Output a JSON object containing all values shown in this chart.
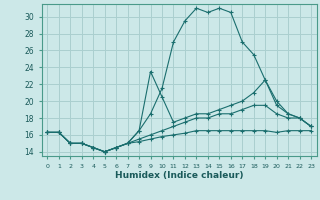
{
  "xlabel": "Humidex (Indice chaleur)",
  "background_color": "#cce8e8",
  "grid_color": "#aacfcf",
  "line_color": "#1a6e6e",
  "xlim": [
    -0.5,
    23.5
  ],
  "ylim": [
    13.5,
    31.5
  ],
  "xticks": [
    0,
    1,
    2,
    3,
    4,
    5,
    6,
    7,
    8,
    9,
    10,
    11,
    12,
    13,
    14,
    15,
    16,
    17,
    18,
    19,
    20,
    21,
    22,
    23
  ],
  "yticks": [
    14,
    16,
    18,
    20,
    22,
    24,
    26,
    28,
    30
  ],
  "series": [
    {
      "x": [
        0,
        1,
        2,
        3,
        4,
        5,
        6,
        7,
        8,
        9,
        10,
        11,
        12,
        13,
        14,
        15,
        16,
        17,
        18,
        19,
        20,
        21,
        22,
        23
      ],
      "y": [
        16.3,
        16.3,
        15.0,
        15.0,
        14.5,
        14.0,
        14.5,
        15.0,
        16.5,
        18.5,
        21.5,
        27.0,
        29.5,
        31.0,
        30.5,
        31.0,
        30.5,
        27.0,
        25.5,
        22.5,
        20.0,
        18.5,
        18.0,
        17.0
      ]
    },
    {
      "x": [
        0,
        1,
        2,
        3,
        4,
        5,
        6,
        7,
        8,
        9,
        10,
        11,
        12,
        13,
        14,
        15,
        16,
        17,
        18,
        19,
        20,
        21,
        22,
        23
      ],
      "y": [
        16.3,
        16.3,
        15.0,
        15.0,
        14.5,
        14.0,
        14.5,
        15.0,
        16.5,
        23.5,
        20.5,
        17.5,
        18.0,
        18.5,
        18.5,
        19.0,
        19.5,
        20.0,
        21.0,
        22.5,
        19.5,
        18.5,
        18.0,
        17.0
      ]
    },
    {
      "x": [
        0,
        1,
        2,
        3,
        4,
        5,
        6,
        7,
        8,
        9,
        10,
        11,
        12,
        13,
        14,
        15,
        16,
        17,
        18,
        19,
        20,
        21,
        22,
        23
      ],
      "y": [
        16.3,
        16.3,
        15.0,
        15.0,
        14.5,
        14.0,
        14.5,
        15.0,
        15.5,
        16.0,
        16.5,
        17.0,
        17.5,
        18.0,
        18.0,
        18.5,
        18.5,
        19.0,
        19.5,
        19.5,
        18.5,
        18.0,
        18.0,
        17.0
      ]
    },
    {
      "x": [
        0,
        1,
        2,
        3,
        4,
        5,
        6,
        7,
        8,
        9,
        10,
        11,
        12,
        13,
        14,
        15,
        16,
        17,
        18,
        19,
        20,
        21,
        22,
        23
      ],
      "y": [
        16.3,
        16.3,
        15.0,
        15.0,
        14.5,
        14.0,
        14.5,
        15.0,
        15.2,
        15.5,
        15.8,
        16.0,
        16.2,
        16.5,
        16.5,
        16.5,
        16.5,
        16.5,
        16.5,
        16.5,
        16.3,
        16.5,
        16.5,
        16.5
      ]
    }
  ]
}
